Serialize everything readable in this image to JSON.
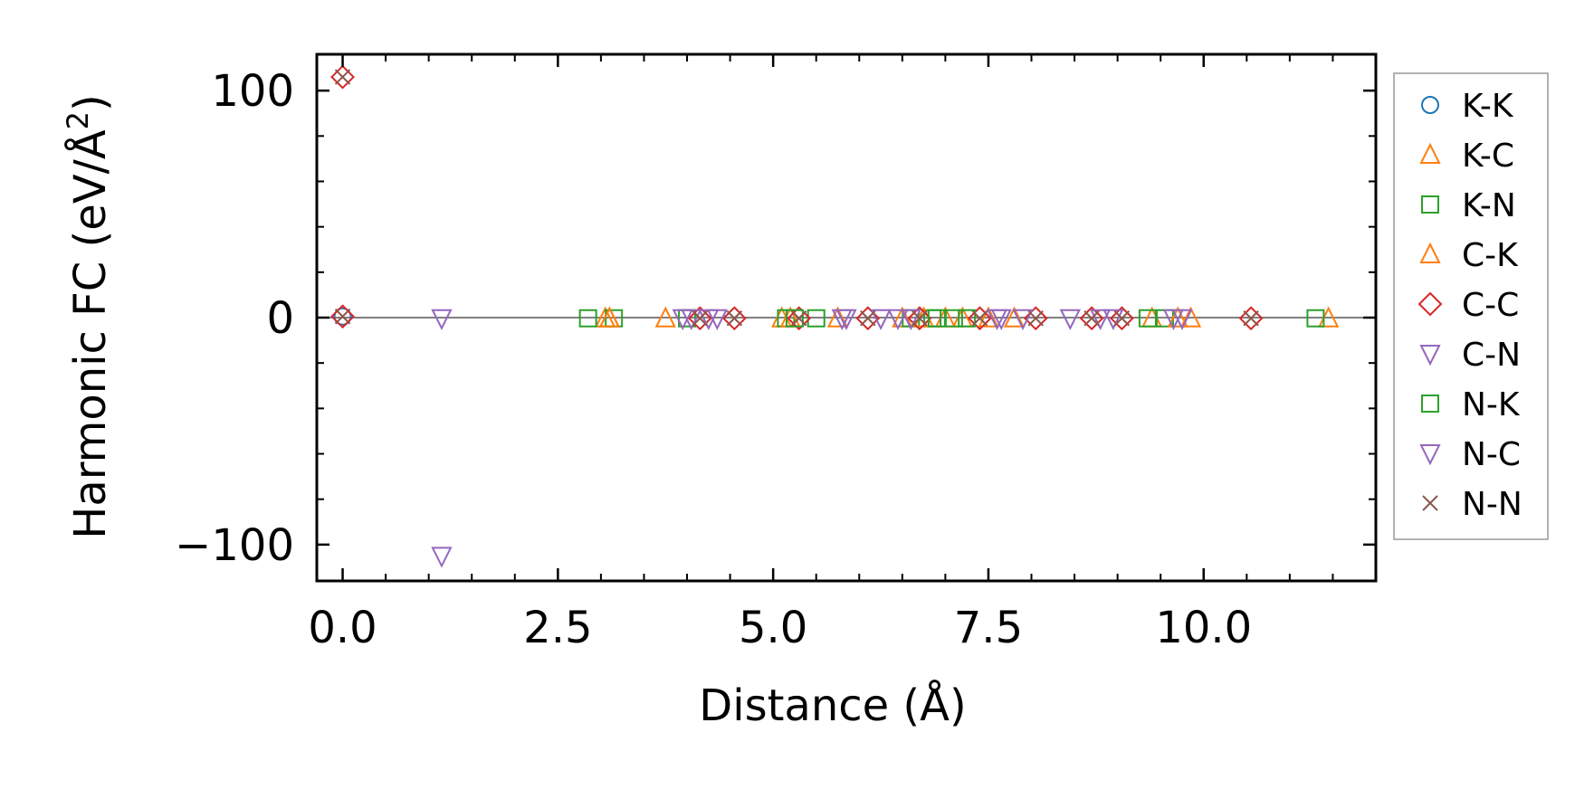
{
  "chart_data": {
    "type": "scatter",
    "title": "",
    "xlabel": "Distance (Å)",
    "ylabel": "Harmonic FC (eV/Å²)",
    "ylabel_main": "Harmonic FC (eV/Å",
    "ylabel_sup": "2",
    "ylabel_close": ")",
    "xlim": [
      -0.3,
      12.0
    ],
    "ylim": [
      -116,
      116
    ],
    "x_ticks": [
      0.0,
      2.5,
      5.0,
      7.5,
      10.0
    ],
    "x_tick_labels": [
      "0.0",
      "2.5",
      "5.0",
      "7.5",
      "10.0"
    ],
    "x_minor_ticks": [
      0.5,
      1.0,
      1.5,
      2.0,
      3.0,
      3.5,
      4.0,
      4.5,
      5.5,
      6.0,
      6.5,
      7.0,
      8.0,
      8.5,
      9.0,
      9.5,
      10.5,
      11.0,
      11.5
    ],
    "y_ticks": [
      -100,
      0,
      100
    ],
    "y_tick_labels": [
      "−100",
      "0",
      "100"
    ],
    "y_minor_ticks": [
      -80,
      -60,
      -40,
      -20,
      20,
      40,
      60,
      80
    ],
    "zero_line": 0,
    "legend_position": "outside-right",
    "series": [
      {
        "name": "K-K",
        "marker": "circle",
        "color": "#1f77b4",
        "x": [
          0.0
        ],
        "y": [
          0.5
        ]
      },
      {
        "name": "K-C",
        "marker": "triangle-up",
        "color": "#ff7f0e",
        "x": [
          3.05,
          3.1,
          3.75,
          5.1,
          5.75,
          6.5,
          7.0,
          7.2,
          7.8,
          9.4,
          9.85,
          11.45
        ],
        "y": [
          -0.3,
          -0.3,
          -0.3,
          -0.3,
          -0.3,
          -0.3,
          -0.3,
          -0.3,
          -0.3,
          -0.3,
          -0.3,
          -0.3
        ]
      },
      {
        "name": "K-N",
        "marker": "square",
        "color": "#2ca02c",
        "x": [
          2.85,
          3.15,
          4.0,
          5.15,
          5.5,
          6.6,
          6.85,
          7.1,
          9.35,
          9.55,
          11.3
        ],
        "y": [
          -0.3,
          -0.3,
          -0.3,
          -0.3,
          -0.3,
          -0.3,
          -0.3,
          -0.3,
          -0.3,
          -0.3,
          -0.3
        ]
      },
      {
        "name": "C-K",
        "marker": "triangle-up",
        "color": "#ff7f0e",
        "x": [
          3.1,
          5.2,
          6.75,
          7.5,
          9.7
        ],
        "y": [
          -0.3,
          -0.3,
          -0.3,
          -0.3,
          -0.3
        ]
      },
      {
        "name": "C-C",
        "marker": "diamond",
        "color": "#d62728",
        "x": [
          0.0,
          0.0,
          4.15,
          4.55,
          5.3,
          6.1,
          6.7,
          7.4,
          8.05,
          8.7,
          9.05,
          10.55
        ],
        "y": [
          106,
          0.5,
          -0.3,
          -0.3,
          -0.3,
          -0.3,
          -0.3,
          -0.3,
          -0.3,
          -0.3,
          -0.3,
          -0.3
        ]
      },
      {
        "name": "C-N",
        "marker": "triangle-down",
        "color": "#9467bd",
        "x": [
          1.15,
          1.15,
          3.95,
          4.25,
          4.35,
          5.85,
          6.25,
          6.45,
          7.65,
          7.9,
          8.45,
          8.95,
          9.75
        ],
        "y": [
          -105,
          -0.3,
          -0.3,
          -0.3,
          -0.3,
          -0.3,
          -0.3,
          -0.3,
          -0.3,
          -0.3,
          -0.3,
          -0.3,
          -0.3
        ]
      },
      {
        "name": "N-K",
        "marker": "square",
        "color": "#2ca02c",
        "x": [
          5.25,
          6.9,
          7.25
        ],
        "y": [
          -0.3,
          -0.3,
          -0.3
        ]
      },
      {
        "name": "N-C",
        "marker": "triangle-down",
        "color": "#9467bd",
        "x": [
          4.05,
          5.8,
          6.6,
          7.6,
          8.8,
          9.65
        ],
        "y": [
          -0.3,
          -0.3,
          -0.3,
          -0.3,
          -0.3,
          -0.3
        ]
      },
      {
        "name": "N-N",
        "marker": "x",
        "color": "#8c564b",
        "x": [
          0.0,
          0.0,
          4.15,
          4.55,
          5.3,
          6.1,
          6.7,
          7.4,
          8.05,
          8.7,
          9.05,
          10.55
        ],
        "y": [
          106,
          0.5,
          -0.3,
          -0.3,
          -0.3,
          -0.3,
          -0.3,
          -0.3,
          -0.3,
          -0.3,
          -0.3,
          -0.3
        ]
      }
    ]
  }
}
